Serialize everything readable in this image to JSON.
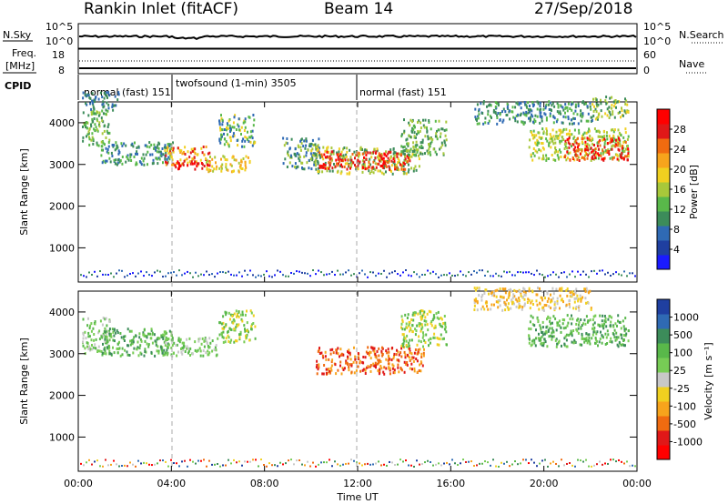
{
  "header": {
    "station": "Rankin Inlet (fitACF)",
    "beam": "Beam 14",
    "date": "27/Sep/2018"
  },
  "param_panel": {
    "nsky_label": "N.Sky",
    "nsky_ticks": [
      "10^5",
      "10^0"
    ],
    "nsearch_label": "N.Search",
    "freq_label": "Freq.",
    "freq_unit": "[MHz]",
    "freq_ticks": [
      "18",
      "8"
    ],
    "nave_label": "Nave",
    "nave_ticks": [
      "60",
      "0"
    ],
    "cpid_label": "CPID",
    "modes": [
      {
        "name": "normal (fast)",
        "cpid": "151"
      },
      {
        "name": "twofsound (1-min)",
        "cpid": "3505"
      },
      {
        "name": "normal (fast)",
        "cpid": "151"
      }
    ]
  },
  "colors": {
    "power_scale": [
      "#1a1aff",
      "#1f3fa0",
      "#2f6ab4",
      "#3c8c5a",
      "#59b84a",
      "#a8c83a",
      "#f0d020",
      "#f7a41c",
      "#f06b10",
      "#e01818",
      "#ff0000"
    ],
    "velocity_scale": [
      "#1f3fa0",
      "#2f6ab4",
      "#3c8c5a",
      "#59b84a",
      "#77cc55",
      "#c8c8c8",
      "#f0d020",
      "#f7a41c",
      "#f06b10",
      "#e01818",
      "#ff0000"
    ]
  },
  "chart_data": [
    {
      "type": "heatmap",
      "title": "Power",
      "xlabel": "",
      "ylabel": "Slant Range [km]",
      "xlim": [
        "00:00",
        "00:00"
      ],
      "ylim": [
        180,
        4500
      ],
      "yticks": [
        "1000",
        "2000",
        "3000",
        "4000"
      ],
      "colorbar": {
        "label": "Power [dB]",
        "ticks": [
          "4",
          "8",
          "12",
          "16",
          "20",
          "24",
          "28"
        ]
      },
      "mode_change_times": [
        "04:00",
        "12:00"
      ]
    },
    {
      "type": "heatmap",
      "title": "Velocity",
      "xlabel": "Time UT",
      "ylabel": "Slant Range [km]",
      "xticks": [
        "00:00",
        "04:00",
        "08:00",
        "12:00",
        "16:00",
        "20:00",
        "00:00"
      ],
      "yticks": [
        "1000",
        "2000",
        "3000",
        "4000"
      ],
      "ylim": [
        180,
        4500
      ],
      "colorbar": {
        "label": "Velocity [m s⁻¹]",
        "ticks": [
          "1000",
          "500",
          "100",
          "25",
          "-25",
          "-100",
          "-500",
          "-1000"
        ]
      },
      "mode_change_times": [
        "04:00",
        "12:00"
      ]
    }
  ]
}
